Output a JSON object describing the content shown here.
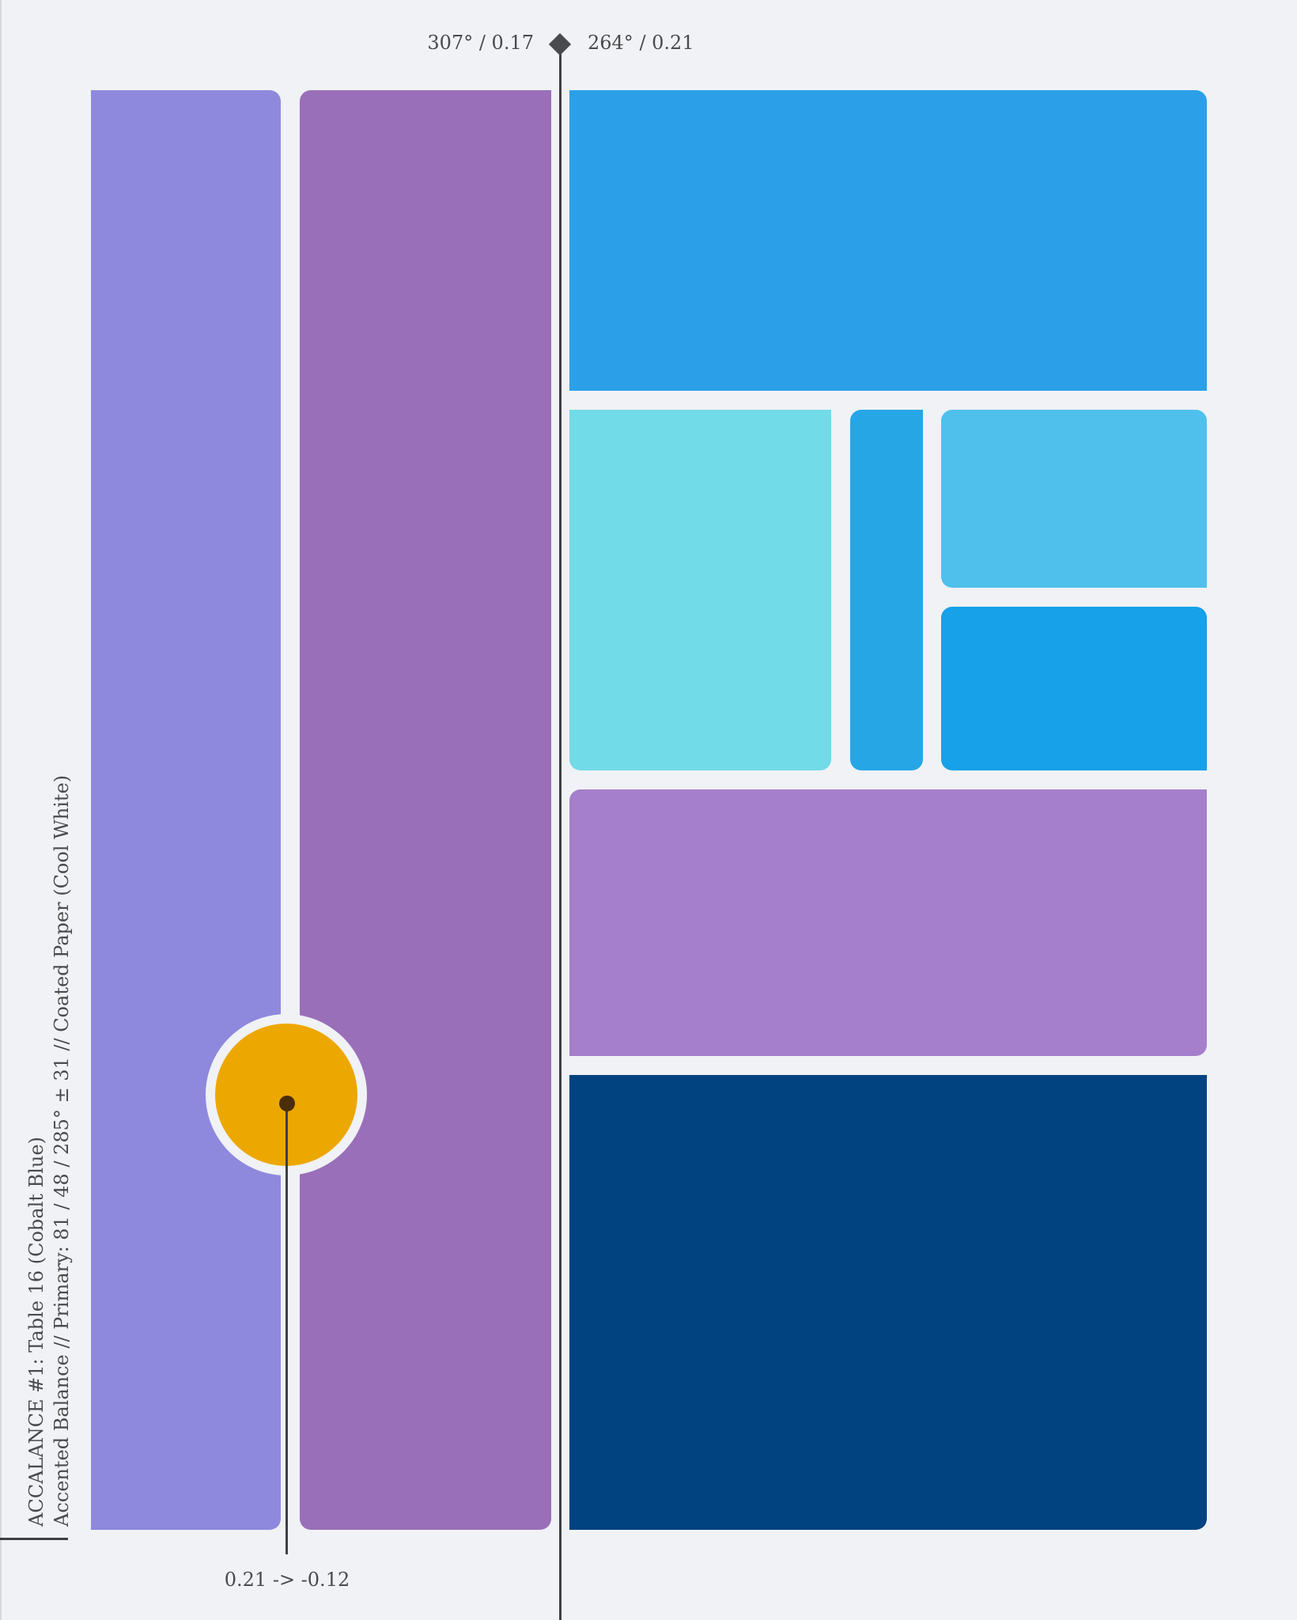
{
  "axis": {
    "left_label": "307° / 0.17",
    "right_label": "264° / 0.21"
  },
  "marker": {
    "label": "0.21 -> -0.12",
    "color": "#eda701"
  },
  "caption": {
    "title": "ACCALANCE #1: Table 16 (Cobalt Blue)",
    "subtitle": "Accented Balance // Primary: 81 / 48 / 285° ± 31 // Coated Paper (Cool White)"
  },
  "colors": {
    "background": "#f0f2f5",
    "ink": "#3f3f41",
    "blocks": [
      "#8e89dd",
      "#9a6fb9",
      "#2ba0e8",
      "#72dbe8",
      "#27a6e6",
      "#4fc0eb",
      "#16a1e8",
      "#a57fcb",
      "#004380"
    ]
  }
}
